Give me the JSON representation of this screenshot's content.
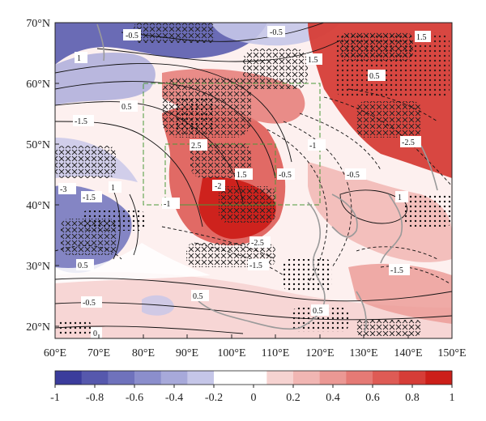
{
  "map": {
    "lon_labels": [
      "60°E",
      "70°E",
      "80°E",
      "90°E",
      "100°E",
      "110°E",
      "120°E",
      "130°E",
      "140°E",
      "150°E"
    ],
    "lat_labels": [
      "70°N",
      "60°N",
      "50°N",
      "40°N",
      "30°N",
      "20°N"
    ],
    "lon_range": [
      60,
      150
    ],
    "lat_range": [
      18,
      70
    ],
    "regions_boxed": [
      {
        "name": "outer box",
        "lon": [
          80,
          120
        ],
        "lat": [
          40,
          60
        ],
        "style": "dashed green"
      },
      {
        "name": "inner box",
        "lon": [
          85,
          110
        ],
        "lat": [
          40,
          50
        ],
        "style": "dashed green"
      }
    ],
    "contour_labels": [
      "-0.5",
      "0.5",
      "1",
      "-1",
      "1.5",
      "-1.5",
      "-2",
      "2",
      "-2.5",
      "0",
      "-3",
      "2.5"
    ]
  },
  "colorbar": {
    "ticks": [
      "-1",
      "-0.8",
      "-0.6",
      "-0.4",
      "-0.2",
      "0",
      "0.2",
      "0.4",
      "0.6",
      "0.8",
      "1"
    ],
    "range": [
      -1,
      1
    ],
    "colors": [
      "#3b3c9c",
      "#5658ad",
      "#6f72bc",
      "#8b8ecc",
      "#a7a9da",
      "#c5c6e8",
      "#ffffff",
      "#ffffff",
      "#f6d3d1",
      "#f1b6b3",
      "#eb9894",
      "#e57a75",
      "#de5b55",
      "#d63d37",
      "#cc1f19"
    ]
  }
}
